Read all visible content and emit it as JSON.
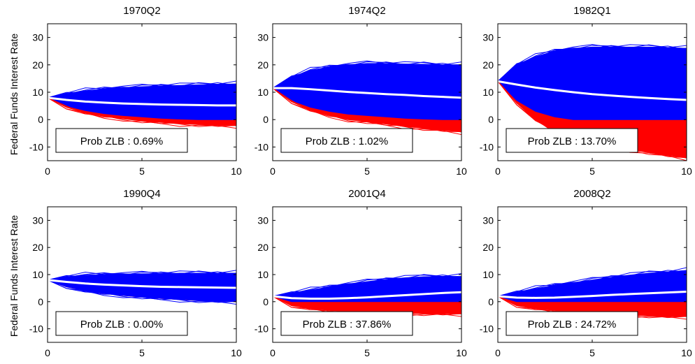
{
  "figure": {
    "ylabel": "Federal Funds Interest Rate",
    "colors": {
      "upper": "#0000ff",
      "lower": "#ff0000",
      "median": "#ffffff",
      "axes": "#000000"
    }
  },
  "chart_data": [
    {
      "type": "area",
      "title": "1970Q2",
      "prob_label": "Prob ZLB : 0.69%",
      "xlim": [
        0,
        10
      ],
      "ylim": [
        -15,
        35
      ],
      "xticks": [
        0,
        5,
        10
      ],
      "yticks": [
        -10,
        0,
        10,
        20,
        30
      ],
      "x": [
        0,
        1,
        2,
        3,
        4,
        5,
        6,
        7,
        8,
        9,
        10
      ],
      "series": [
        {
          "role": "upper",
          "values": [
            8,
            9.5,
            10.5,
            11.2,
            11.7,
            12,
            12.3,
            12.5,
            12.7,
            12.9,
            13
          ]
        },
        {
          "role": "median",
          "values": [
            8,
            7.2,
            6.6,
            6.2,
            5.9,
            5.7,
            5.5,
            5.4,
            5.3,
            5.2,
            5.2
          ]
        },
        {
          "role": "blue_lower",
          "values": [
            8,
            5,
            3.3,
            2.2,
            1.5,
            1,
            0.5,
            0.2,
            0,
            0,
            0
          ]
        },
        {
          "role": "lower",
          "values": [
            8,
            4.5,
            2.5,
            1.2,
            0.3,
            -0.5,
            -1,
            -1.5,
            -1.8,
            -2,
            -2.2
          ]
        }
      ]
    },
    {
      "type": "area",
      "title": "1974Q2",
      "prob_label": "Prob ZLB : 1.02%",
      "xlim": [
        0,
        10
      ],
      "ylim": [
        -15,
        35
      ],
      "xticks": [
        0,
        5,
        10
      ],
      "yticks": [
        -10,
        0,
        10,
        20,
        30
      ],
      "x": [
        0,
        1,
        2,
        3,
        4,
        5,
        6,
        7,
        8,
        9,
        10
      ],
      "series": [
        {
          "role": "upper",
          "values": [
            11.5,
            15.5,
            18,
            19.2,
            20,
            20.5,
            20.5,
            20.3,
            20.2,
            20,
            20
          ]
        },
        {
          "role": "median",
          "values": [
            11.5,
            11.5,
            11.1,
            10.6,
            10.1,
            9.7,
            9.3,
            9,
            8.6,
            8.3,
            8
          ]
        },
        {
          "role": "blue_lower",
          "values": [
            11.5,
            7,
            4.5,
            3,
            2,
            1.5,
            1,
            0.5,
            0.2,
            0,
            0
          ]
        },
        {
          "role": "lower",
          "values": [
            11.5,
            6.5,
            3.5,
            1.5,
            0,
            -0.8,
            -1.6,
            -2.5,
            -3.2,
            -3.8,
            -4.5
          ]
        }
      ]
    },
    {
      "type": "area",
      "title": "1982Q1",
      "prob_label": "Prob ZLB : 13.70%",
      "xlim": [
        0,
        10
      ],
      "ylim": [
        -15,
        35
      ],
      "xticks": [
        0,
        5,
        10
      ],
      "yticks": [
        -10,
        0,
        10,
        20,
        30
      ],
      "x": [
        0,
        1,
        2,
        3,
        4,
        5,
        6,
        7,
        8,
        9,
        10
      ],
      "series": [
        {
          "role": "upper",
          "values": [
            14,
            20,
            23,
            25,
            26,
            26.5,
            26.5,
            26.5,
            26.5,
            26.3,
            26
          ]
        },
        {
          "role": "median",
          "values": [
            14,
            12.8,
            11.7,
            10.8,
            10,
            9.3,
            8.8,
            8.3,
            7.9,
            7.5,
            7.2
          ]
        },
        {
          "role": "blue_lower",
          "values": [
            14,
            7,
            3,
            1,
            0,
            0,
            0,
            0,
            0,
            0,
            0
          ]
        },
        {
          "role": "lower",
          "values": [
            14,
            6,
            0,
            -4,
            -6.5,
            -8.5,
            -10,
            -11,
            -12,
            -13,
            -14
          ]
        }
      ]
    },
    {
      "type": "area",
      "title": "1990Q4",
      "prob_label": "Prob ZLB : 0.00%",
      "xlim": [
        0,
        10
      ],
      "ylim": [
        -15,
        35
      ],
      "xticks": [
        0,
        5,
        10
      ],
      "yticks": [
        -10,
        0,
        10,
        20,
        30
      ],
      "x": [
        0,
        1,
        2,
        3,
        4,
        5,
        6,
        7,
        8,
        9,
        10
      ],
      "series": [
        {
          "role": "upper",
          "values": [
            8,
            9.2,
            9.8,
            10,
            10.2,
            10.3,
            10.4,
            10.5,
            10.5,
            10.5,
            10.5
          ]
        },
        {
          "role": "median",
          "values": [
            8,
            7.3,
            6.7,
            6.3,
            6,
            5.7,
            5.5,
            5.4,
            5.3,
            5.2,
            5.1
          ]
        },
        {
          "role": "blue_lower",
          "values": [
            8,
            5.5,
            4,
            3,
            2.3,
            1.7,
            1.2,
            0.8,
            0.4,
            0.2,
            0
          ]
        },
        {
          "role": "lower",
          "values": [
            8,
            5.5,
            4,
            3,
            2.3,
            1.7,
            1.2,
            0.8,
            0.4,
            0.2,
            0
          ]
        }
      ]
    },
    {
      "type": "area",
      "title": "2001Q4",
      "prob_label": "Prob ZLB : 37.86%",
      "xlim": [
        0,
        10
      ],
      "ylim": [
        -15,
        35
      ],
      "xticks": [
        0,
        5,
        10
      ],
      "yticks": [
        -10,
        0,
        10,
        20,
        30
      ],
      "x": [
        0,
        1,
        2,
        3,
        4,
        5,
        6,
        7,
        8,
        9,
        10
      ],
      "series": [
        {
          "role": "upper",
          "values": [
            2,
            3.2,
            4.3,
            5.4,
            6.5,
            7.4,
            8.2,
            8.8,
            9.2,
            9.3,
            9.3
          ]
        },
        {
          "role": "median",
          "values": [
            2,
            1.3,
            1.1,
            1.1,
            1.3,
            1.6,
            2,
            2.4,
            2.8,
            3.2,
            3.5
          ]
        },
        {
          "role": "blue_lower",
          "values": [
            2,
            0,
            0,
            0,
            0,
            0,
            0,
            0,
            0,
            0,
            0
          ]
        },
        {
          "role": "lower",
          "values": [
            2,
            -1.5,
            -2.5,
            -3.2,
            -3.6,
            -4,
            -4.2,
            -4.3,
            -4.4,
            -4.4,
            -4.5
          ]
        }
      ]
    },
    {
      "type": "area",
      "title": "2008Q2",
      "prob_label": "Prob ZLB : 24.72%",
      "xlim": [
        0,
        10
      ],
      "ylim": [
        -15,
        35
      ],
      "xticks": [
        0,
        5,
        10
      ],
      "yticks": [
        -10,
        0,
        10,
        20,
        30
      ],
      "x": [
        0,
        1,
        2,
        3,
        4,
        5,
        6,
        7,
        8,
        9,
        10
      ],
      "series": [
        {
          "role": "upper",
          "values": [
            2,
            3.5,
            4.8,
            6,
            7,
            8,
            9,
            9.8,
            10.5,
            11,
            11.5
          ]
        },
        {
          "role": "median",
          "values": [
            2,
            1.5,
            1.4,
            1.5,
            1.8,
            2.1,
            2.5,
            2.8,
            3.1,
            3.4,
            3.7
          ]
        },
        {
          "role": "blue_lower",
          "values": [
            2,
            0,
            0,
            0,
            0,
            0,
            0,
            0,
            0,
            0,
            0
          ]
        },
        {
          "role": "lower",
          "values": [
            2,
            -1.5,
            -2.5,
            -3.2,
            -3.8,
            -4.2,
            -4.6,
            -5,
            -5.2,
            -5.4,
            -5.5
          ]
        }
      ]
    }
  ]
}
